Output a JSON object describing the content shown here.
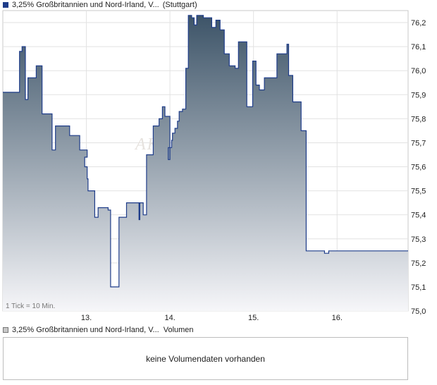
{
  "legend": {
    "series_label": "3,25% Großbritannien und Nord-Irland, V...",
    "exchange": "(Stuttgart)",
    "volume_series_label": "3,25% Großbritannien und Nord-Irland, V...",
    "volume_word": "Volumen"
  },
  "watermark": "AKTI",
  "tick_note": "1 Tick = 10 Min.",
  "volume_panel": {
    "message": "keine Volumendaten vorhanden"
  },
  "colors": {
    "line": "#1f3d8a",
    "fill_top": "#3d5468",
    "fill_bottom": "#f6f6f9",
    "grid": "#e2e2e2"
  },
  "chart_data": {
    "type": "area",
    "grid": true,
    "ylim": [
      75.0,
      76.25
    ],
    "xlim": [
      12.0,
      16.85
    ],
    "y_ticks": [
      75.0,
      75.1,
      75.2,
      75.3,
      75.4,
      75.5,
      75.6,
      75.7,
      75.8,
      75.9,
      76.0,
      76.1,
      76.2
    ],
    "y_tick_labels": [
      "75,0",
      "75,1",
      "75,2",
      "75,3",
      "75,4",
      "75,5",
      "75,6",
      "75,7",
      "75,8",
      "75,9",
      "76,0",
      "76,1",
      "76,2"
    ],
    "x_ticks": [
      13.0,
      14.0,
      15.0,
      16.0
    ],
    "x_tick_labels": [
      "13.",
      "14.",
      "15.",
      "16."
    ],
    "x": [
      12.0,
      12.19,
      12.2,
      12.23,
      12.27,
      12.29,
      12.3,
      12.4,
      12.47,
      12.49,
      12.52,
      12.57,
      12.59,
      12.63,
      12.8,
      12.92,
      12.96,
      13.01,
      12.98,
      13.01,
      13.02,
      13.1,
      13.12,
      13.14,
      13.26,
      13.29,
      13.3,
      13.39,
      13.48,
      13.53,
      13.58,
      13.63,
      13.64,
      13.68,
      13.72,
      13.8,
      13.87,
      13.91,
      13.94,
      14.0,
      13.98,
      14.02,
      14.03,
      14.06,
      14.09,
      14.11,
      14.15,
      14.19,
      14.22,
      14.26,
      14.29,
      14.32,
      14.4,
      14.5,
      14.55,
      14.6,
      14.65,
      14.71,
      14.78,
      14.82,
      14.86,
      14.92,
      14.94,
      14.96,
      14.99,
      15.03,
      15.07,
      15.13,
      15.28,
      15.4,
      15.42,
      15.47,
      15.57,
      15.63,
      15.72,
      15.85,
      15.9,
      15.97,
      16.0,
      16.11,
      16.16,
      16.2,
      16.28,
      16.35,
      16.42,
      16.5,
      16.62,
      16.7,
      16.75,
      16.78,
      16.81,
      16.83,
      16.84
    ],
    "values": [
      75.91,
      75.91,
      76.08,
      76.1,
      75.88,
      75.88,
      75.97,
      76.02,
      75.82,
      75.82,
      75.82,
      75.82,
      75.67,
      75.77,
      75.73,
      75.67,
      75.67,
      75.64,
      75.6,
      75.55,
      75.5,
      75.39,
      75.39,
      75.43,
      75.42,
      75.1,
      75.1,
      75.39,
      75.45,
      75.45,
      75.45,
      75.38,
      75.45,
      75.4,
      75.65,
      75.77,
      75.8,
      75.85,
      75.81,
      75.63,
      75.68,
      75.71,
      75.74,
      75.76,
      75.79,
      75.83,
      75.84,
      76.01,
      76.23,
      76.22,
      76.19,
      76.23,
      76.22,
      76.18,
      76.21,
      76.17,
      76.07,
      76.02,
      76.01,
      76.12,
      76.12,
      75.85,
      75.85,
      75.85,
      76.04,
      75.94,
      75.92,
      75.97,
      76.07,
      76.11,
      75.98,
      75.87,
      75.75,
      75.25,
      75.25,
      75.24,
      75.25,
      75.25,
      75.25,
      75.25,
      75.25,
      75.25,
      75.25,
      75.25,
      75.25,
      75.25,
      75.25,
      75.25,
      75.25,
      75.25,
      75.25,
      75.25,
      75.25
    ]
  }
}
